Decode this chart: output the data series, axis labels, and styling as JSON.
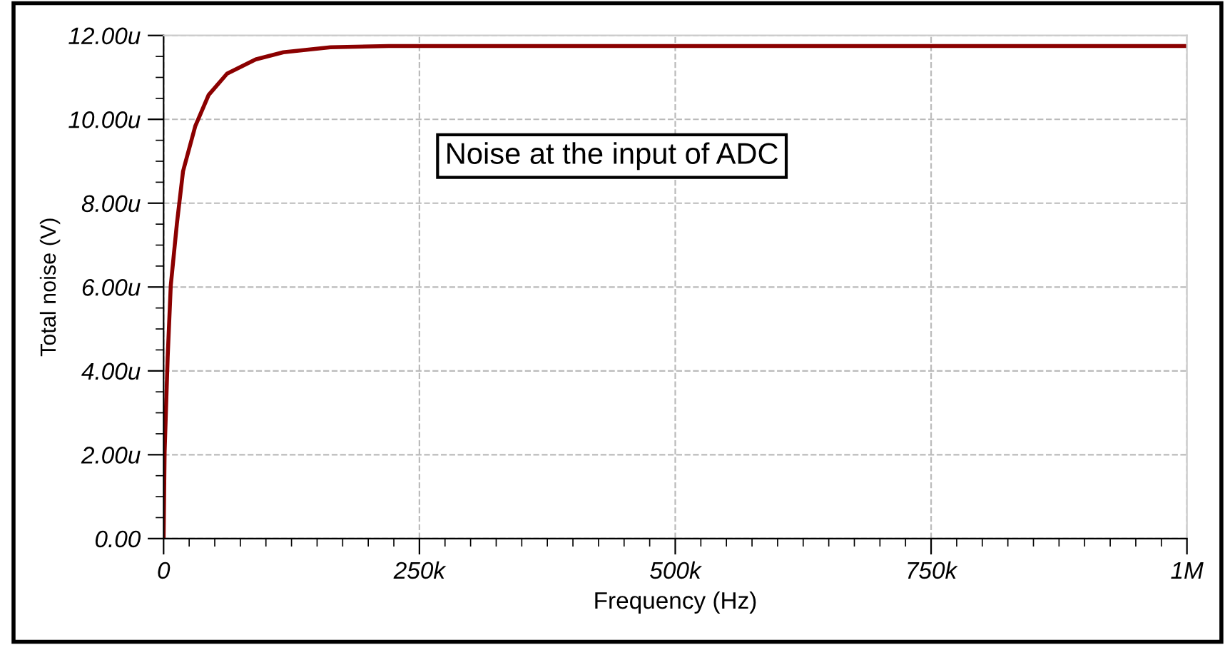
{
  "chart_data": {
    "type": "line",
    "xlabel": "Frequency (Hz)",
    "ylabel": "Total noise (V)",
    "annotations": [
      "Noise at the input of ADC"
    ],
    "xlim": [
      0,
      1000000
    ],
    "ylim": [
      0,
      12
    ],
    "xticks": [
      {
        "value": 0,
        "label": "0"
      },
      {
        "value": 250000,
        "label": "250k"
      },
      {
        "value": 500000,
        "label": "500k"
      },
      {
        "value": 750000,
        "label": "750k"
      },
      {
        "value": 1000000,
        "label": "1M"
      }
    ],
    "yticks": [
      {
        "value": 0,
        "label": "0.00"
      },
      {
        "value": 2,
        "label": "2.00u"
      },
      {
        "value": 4,
        "label": "4.00u"
      },
      {
        "value": 6,
        "label": "6.00u"
      },
      {
        "value": 8,
        "label": "8.00u"
      },
      {
        "value": 10,
        "label": "10.00u"
      },
      {
        "value": 12,
        "label": "12.00u"
      }
    ],
    "grid": true,
    "legend": false,
    "marker": "none",
    "line_style": "solid",
    "series": [
      {
        "color": "#8b0000",
        "x": [
          0,
          1000,
          4000,
          7000,
          13000,
          19000,
          31000,
          44000,
          62000,
          90000,
          117000,
          163000,
          220000,
          1000000
        ],
        "values": [
          0,
          2.06,
          4.33,
          6.03,
          7.51,
          8.76,
          9.84,
          10.58,
          11.09,
          11.43,
          11.6,
          11.72,
          11.75,
          11.75
        ]
      }
    ]
  }
}
